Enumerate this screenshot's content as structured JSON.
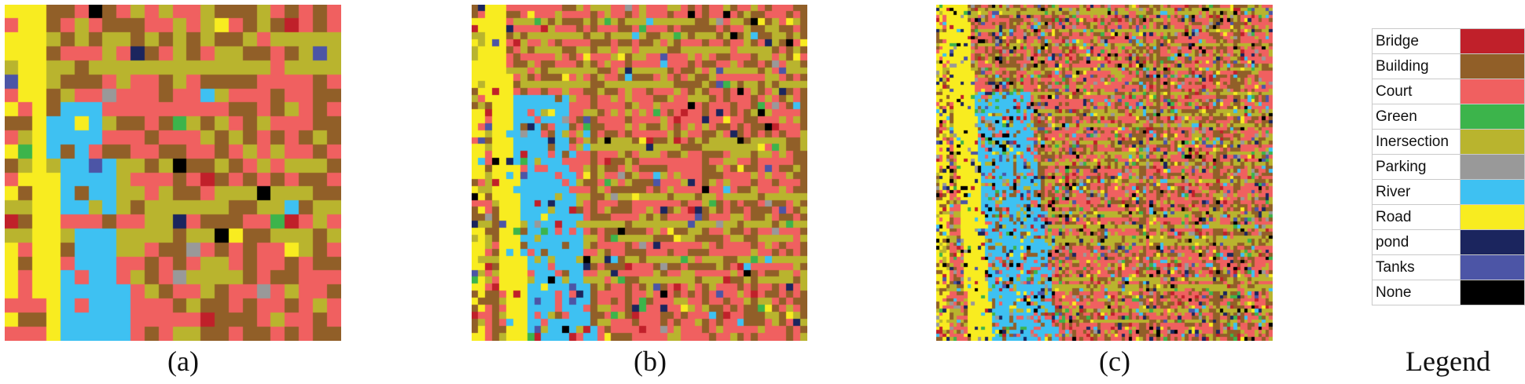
{
  "panels": [
    {
      "id": "a",
      "caption": "(a)",
      "grid_size": 24
    },
    {
      "id": "b",
      "caption": "(b)",
      "grid_size": 48
    },
    {
      "id": "c",
      "caption": "(c)",
      "grid_size": 96
    }
  ],
  "legend": {
    "title": "Legend",
    "classes": [
      {
        "label": "Bridge",
        "color": "#c0202a"
      },
      {
        "label": "Building",
        "color": "#915f28"
      },
      {
        "label": "Court",
        "color": "#f06060"
      },
      {
        "label": "Green",
        "color": "#3cb44b"
      },
      {
        "label": "Inersection",
        "color": "#b9b42e"
      },
      {
        "label": "Parking",
        "color": "#999999"
      },
      {
        "label": "River",
        "color": "#3ec1f2"
      },
      {
        "label": "Road",
        "color": "#f8ec20"
      },
      {
        "label": "pond",
        "color": "#1b255e"
      },
      {
        "label": "Tanks",
        "color": "#4c55a6"
      },
      {
        "label": "None",
        "color": "#000000"
      }
    ]
  }
}
